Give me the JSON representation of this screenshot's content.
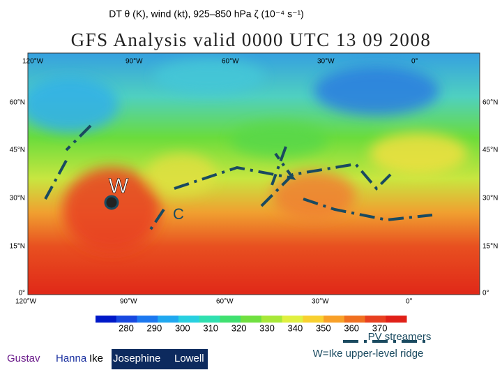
{
  "header": "DT θ (K), wind (kt), 925–850 hPa ζ (10⁻⁴ s⁻¹)",
  "map": {
    "title": "GFS Analysis valid 0000 UTC 13 09 2008",
    "longitudes": [
      "120°W",
      "90°W",
      "60°W",
      "30°W",
      "0°"
    ],
    "latitudes": [
      "60°N",
      "45°N",
      "30°N",
      "15°N",
      "0°"
    ],
    "markers": [
      "W",
      "C"
    ]
  },
  "colorbar": {
    "labels": [
      "280",
      "290",
      "300",
      "310",
      "320",
      "330",
      "340",
      "350",
      "360",
      "370"
    ]
  },
  "legend": {
    "streamers": "PV streamers",
    "ridge": "W=Ike upper-level ridge"
  },
  "storms": [
    "Gustav",
    "Hanna",
    "Ike",
    "Josephine",
    "Lowell"
  ]
}
